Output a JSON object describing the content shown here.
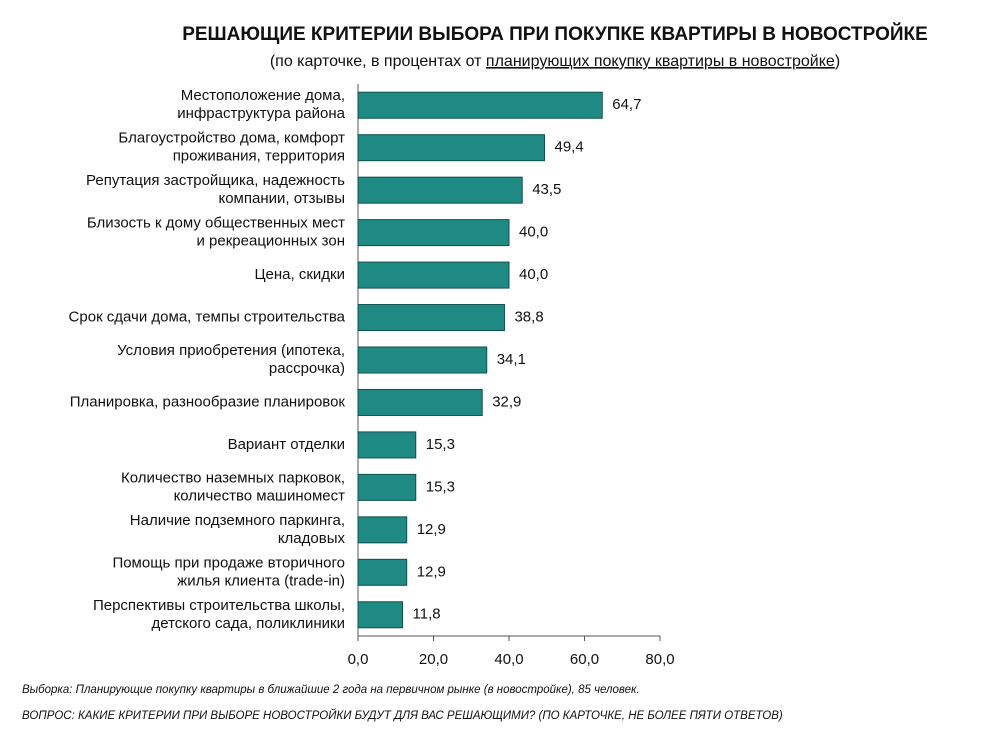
{
  "chart_data": {
    "type": "bar",
    "orientation": "horizontal",
    "title": "РЕШАЮЩИЕ КРИТЕРИИ ВЫБОРА ПРИ ПОКУПКЕ КВАРТИРЫ В НОВОСТРОЙКЕ",
    "subtitle": [
      "(по карточке, в процентах от ",
      "планирующих покупку квартиры в новостройке",
      ")"
    ],
    "categories": [
      [
        "Местоположение дома,",
        "инфраструктура района"
      ],
      [
        "Благоустройство дома, комфорт",
        "проживания, территория"
      ],
      [
        "Репутация застройщика, надежность",
        "компании, отзывы"
      ],
      [
        "Близость к дому общественных мест",
        "и рекреационных зон"
      ],
      [
        "Цена, скидки"
      ],
      [
        "Срок сдачи дома, темпы строительства"
      ],
      [
        "Условия приобретения (ипотека,",
        "рассрочка)"
      ],
      [
        "Планировка, разнообразие планировок"
      ],
      [
        "Вариант отделки"
      ],
      [
        "Количество наземных парковок,",
        "количество машиномест"
      ],
      [
        "Наличие подземного паркинга,",
        "кладовых"
      ],
      [
        "Помощь при продаже вторичного",
        "жилья клиента (trade-in)"
      ],
      [
        "Перспективы строительства школы,",
        "детского сада, поликлиники"
      ]
    ],
    "values": [
      64.7,
      49.4,
      43.5,
      40.0,
      40.0,
      38.8,
      34.1,
      32.9,
      15.3,
      15.3,
      12.9,
      12.9,
      11.8
    ],
    "value_labels": [
      "64,7",
      "49,4",
      "43,5",
      "40,0",
      "40,0",
      "38,8",
      "34,1",
      "32,9",
      "15,3",
      "15,3",
      "12,9",
      "12,9",
      "11,8"
    ],
    "color": "#1f8a84",
    "xlim": [
      0,
      80
    ],
    "xticks": [
      {
        "value": 0,
        "label": "0,0"
      },
      {
        "value": 20,
        "label": "20,0"
      },
      {
        "value": 40,
        "label": "40,0"
      },
      {
        "value": 60,
        "label": "60,0"
      },
      {
        "value": 80,
        "label": "80,0"
      }
    ],
    "footnotes": [
      "Выборка: Планирующие покупку квартиры в ближайшие 2 года на первичном рынке (в новостройке), 85 человек.",
      "ВОПРОС: КАКИЕ КРИТЕРИИ ПРИ ВЫБОРЕ НОВОСТРОЙКИ БУДУТ ДЛЯ ВАС РЕШАЮЩИМИ? (ПО КАРТОЧКЕ, НЕ БОЛЕЕ ПЯТИ ОТВЕТОВ)"
    ]
  }
}
